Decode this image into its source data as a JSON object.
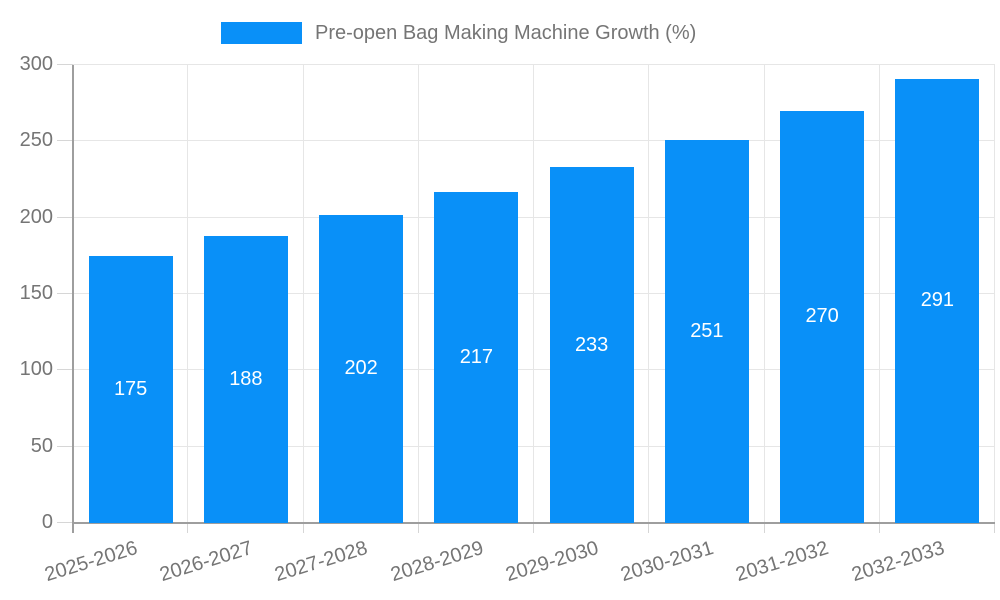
{
  "chart_data": {
    "type": "bar",
    "title": "Pre-open Bag Making Machine Growth (%)",
    "categories": [
      "2025-2026",
      "2026-2027",
      "2027-2028",
      "2028-2029",
      "2029-2030",
      "2030-2031",
      "2031-2032",
      "2032-2033"
    ],
    "values": [
      175,
      188,
      202,
      217,
      233,
      251,
      270,
      291
    ],
    "xlabel": "",
    "ylabel": "",
    "ylim": [
      0,
      300
    ],
    "yticks": [
      0,
      50,
      100,
      150,
      200,
      250,
      300
    ],
    "grid": true,
    "legend_position": "top",
    "colors": {
      "bar": "#0990f8",
      "value_label": "#ffffff",
      "axis_text": "#757575",
      "axis_line": "#9e9e9e",
      "grid_line": "#e6e6e6",
      "background": "#ffffff"
    }
  }
}
